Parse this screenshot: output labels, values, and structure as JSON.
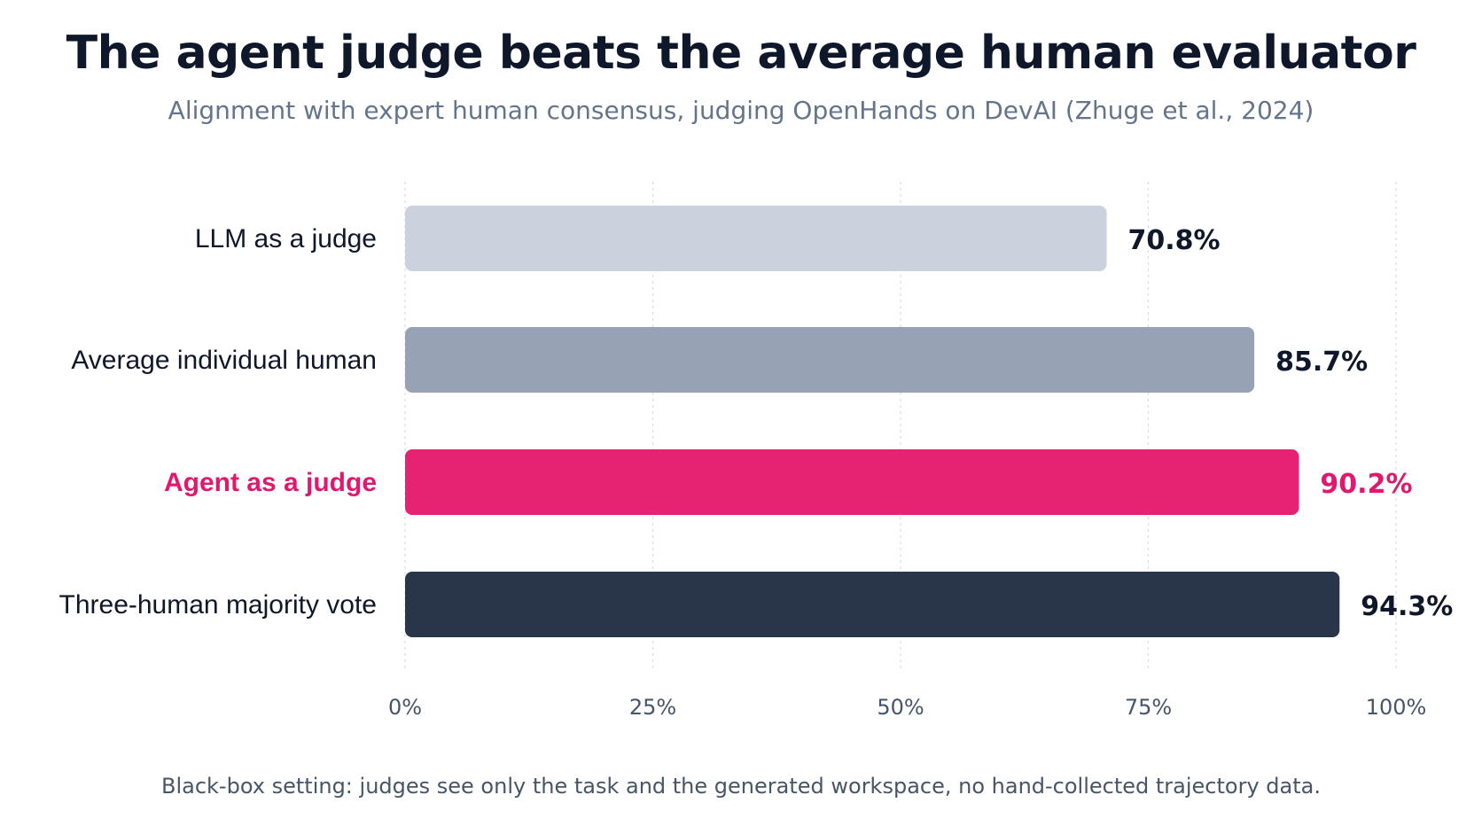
{
  "header": {
    "title": "The agent judge beats the average human evaluator",
    "subtitle": "Alignment with expert human consensus, judging OpenHands on DevAI (Zhuge et al., 2024)"
  },
  "footer": {
    "note": "Black-box setting: judges see only the task and the generated workspace, no hand-collected trajectory data."
  },
  "colors": {
    "llm": "#cbd2de",
    "human": "#97a3b4",
    "agent": "#e62373",
    "majority": "#293548",
    "label_default": "#0f172a",
    "label_highlight": "#e0196f",
    "grid": "#d8dde5",
    "tick": "#475569"
  },
  "chart_data": {
    "type": "bar",
    "orientation": "horizontal",
    "title": "The agent judge beats the average human evaluator",
    "subtitle": "Alignment with expert human consensus, judging OpenHands on DevAI (Zhuge et al., 2024)",
    "xlabel": "",
    "ylabel": "",
    "xlim": [
      0,
      100
    ],
    "x_ticks": [
      0,
      25,
      50,
      75,
      100
    ],
    "x_tick_labels": [
      "0%",
      "25%",
      "50%",
      "75%",
      "100%"
    ],
    "grid": "vertical dashed",
    "legend": "none",
    "categories": [
      "LLM as a judge",
      "Average individual human",
      "Agent as a judge",
      "Three-human majority vote"
    ],
    "values": [
      70.8,
      85.7,
      90.2,
      94.3
    ],
    "value_labels": [
      "70.8%",
      "85.7%",
      "90.2%",
      "94.3%"
    ],
    "highlight": "Agent as a judge"
  }
}
